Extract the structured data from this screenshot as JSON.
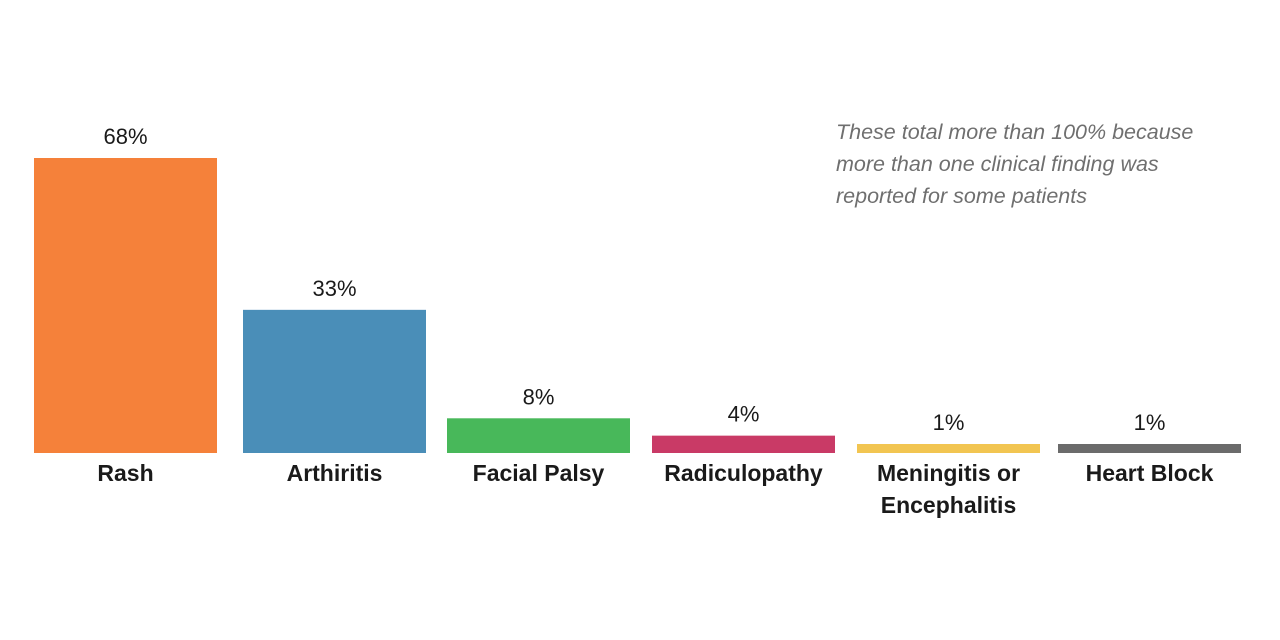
{
  "chart_data": {
    "type": "bar",
    "categories": [
      "Rash",
      "Arthiritis",
      "Facial Palsy",
      "Radiculopathy",
      "Meningitis or Encephalitis",
      "Heart Block"
    ],
    "category_lines": [
      [
        "Rash"
      ],
      [
        "Arthiritis"
      ],
      [
        "Facial Palsy"
      ],
      [
        "Radiculopathy"
      ],
      [
        "Meningitis or",
        "Encephalitis"
      ],
      [
        "Heart Block"
      ]
    ],
    "values": [
      68,
      33,
      8,
      4,
      1,
      1
    ],
    "value_labels": [
      "68%",
      "33%",
      "8%",
      "4%",
      "1%",
      "1%"
    ],
    "colors": [
      "#F5813A",
      "#4A8EB8",
      "#48B85A",
      "#C93A66",
      "#F2C551",
      "#6B6B6B"
    ],
    "annotation": "These total more than 100% because\nmore than one clinical finding was\nreported for some patients",
    "title": "",
    "xlabel": "",
    "ylabel": "",
    "ylim": [
      0,
      68
    ],
    "grid": false,
    "legend": "none"
  }
}
